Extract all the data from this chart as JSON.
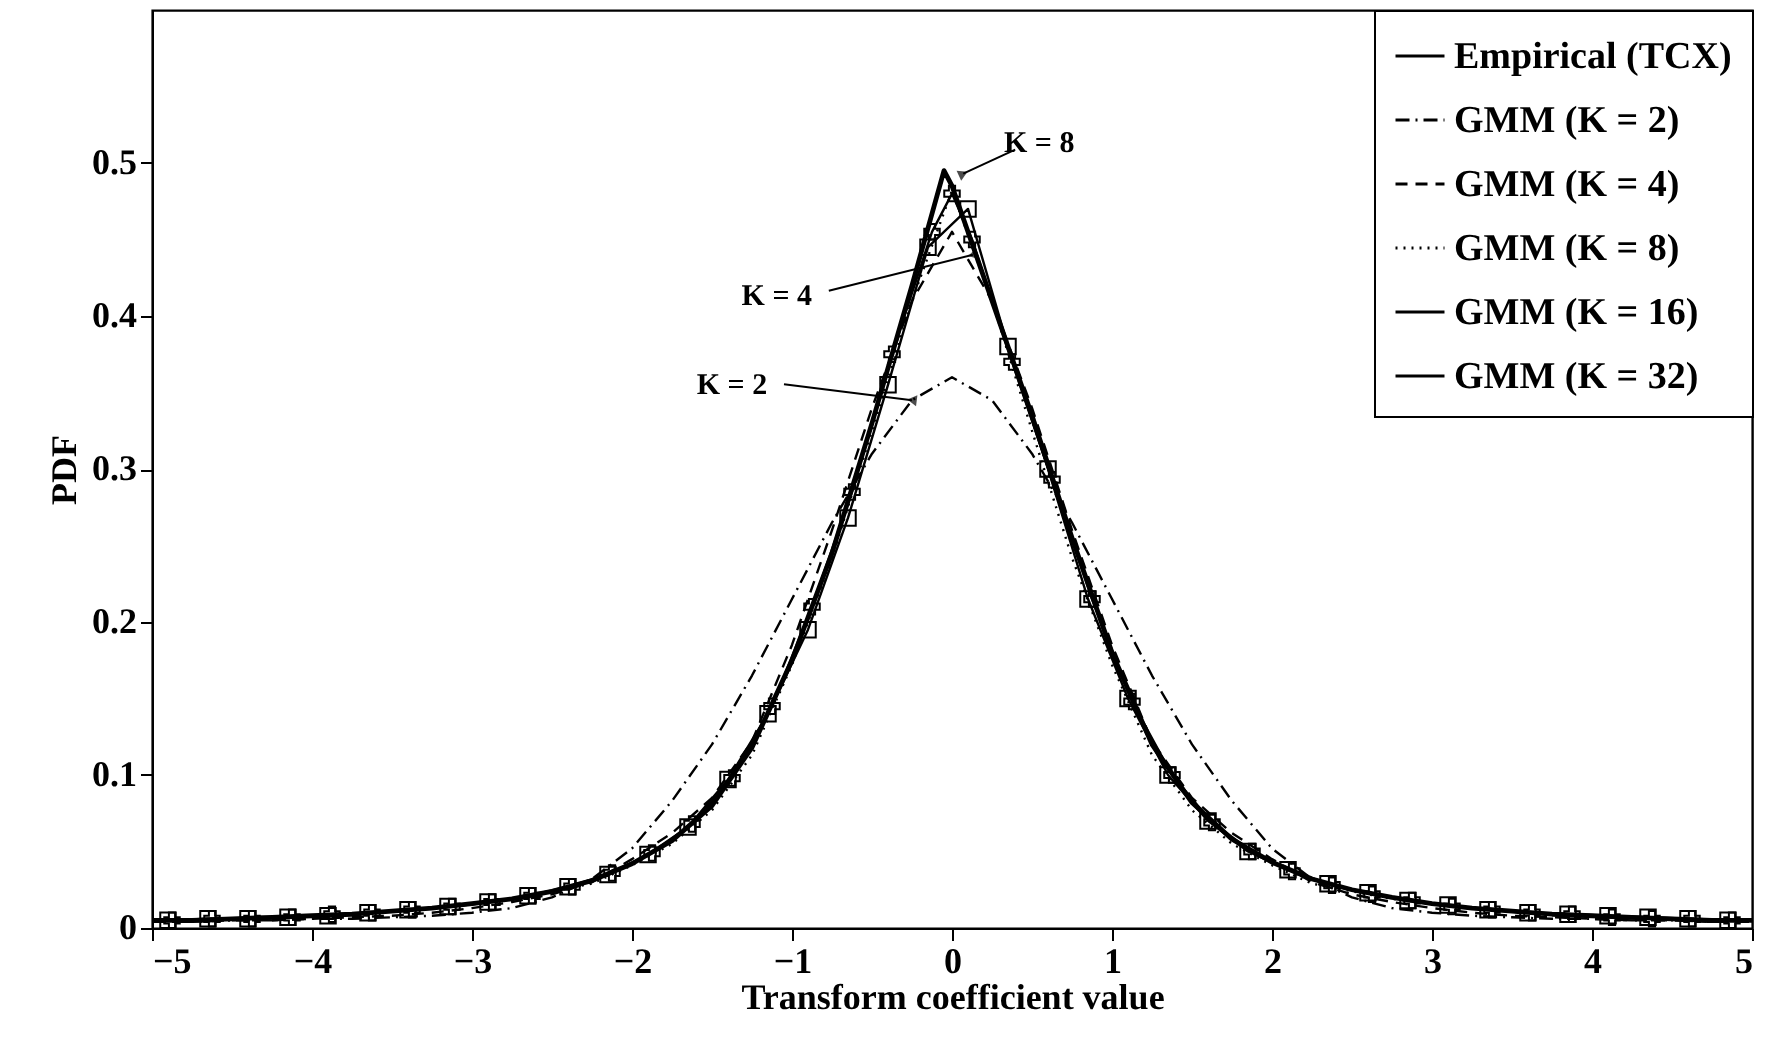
{
  "chart_data": {
    "type": "line",
    "xlabel": "Transform coefficient value",
    "ylabel": "PDF",
    "x": [
      -5,
      -4.75,
      -4.5,
      -4.25,
      -4,
      -3.75,
      -3.5,
      -3.25,
      -3,
      -2.75,
      -2.5,
      -2.25,
      -2,
      -1.75,
      -1.5,
      -1.25,
      -1,
      -0.75,
      -0.5,
      -0.25,
      0,
      0.25,
      0.5,
      0.75,
      1,
      1.25,
      1.5,
      1.75,
      2,
      2.25,
      2.5,
      2.75,
      3,
      3.25,
      3.5,
      3.75,
      4,
      4.25,
      4.5,
      4.75,
      5
    ],
    "series": [
      {
        "name": "Empirical (TCX)",
        "color": "#000000",
        "line_style": "solid",
        "marker": "none",
        "x": [
          -5,
          -4.75,
          -4.5,
          -4.25,
          -4,
          -3.75,
          -3.5,
          -3.25,
          -3,
          -2.75,
          -2.5,
          -2.25,
          -2,
          -1.75,
          -1.5,
          -1.25,
          -1,
          -0.75,
          -0.5,
          -0.25,
          -0.05,
          0,
          0.25,
          0.5,
          0.75,
          1,
          1.25,
          1.5,
          1.75,
          2,
          2.25,
          2.5,
          2.75,
          3,
          3.25,
          3.5,
          3.75,
          4,
          4.25,
          4.5,
          4.75,
          5
        ],
        "values": [
          0.005,
          0.005,
          0.006,
          0.007,
          0.008,
          0.009,
          0.011,
          0.013,
          0.016,
          0.019,
          0.024,
          0.031,
          0.042,
          0.057,
          0.08,
          0.118,
          0.175,
          0.245,
          0.33,
          0.42,
          0.495,
          0.485,
          0.41,
          0.335,
          0.255,
          0.18,
          0.12,
          0.082,
          0.058,
          0.043,
          0.032,
          0.025,
          0.02,
          0.016,
          0.013,
          0.011,
          0.009,
          0.008,
          0.007,
          0.006,
          0.005,
          0.005
        ]
      },
      {
        "name": "GMM (K = 2)",
        "color": "#000000",
        "line_style": "dashdot",
        "marker": "none",
        "values": [
          0.004,
          0.004,
          0.005,
          0.005,
          0.006,
          0.006,
          0.007,
          0.008,
          0.01,
          0.013,
          0.02,
          0.032,
          0.052,
          0.083,
          0.12,
          0.165,
          0.215,
          0.265,
          0.31,
          0.345,
          0.36,
          0.345,
          0.31,
          0.265,
          0.215,
          0.165,
          0.12,
          0.083,
          0.052,
          0.032,
          0.02,
          0.013,
          0.01,
          0.008,
          0.007,
          0.006,
          0.006,
          0.005,
          0.005,
          0.004,
          0.004
        ]
      },
      {
        "name": "GMM (K = 4)",
        "color": "#000000",
        "line_style": "dashed",
        "marker": "none",
        "values": [
          0.004,
          0.004,
          0.005,
          0.005,
          0.006,
          0.007,
          0.008,
          0.01,
          0.013,
          0.017,
          0.022,
          0.03,
          0.045,
          0.062,
          0.085,
          0.122,
          0.185,
          0.26,
          0.34,
          0.41,
          0.455,
          0.41,
          0.34,
          0.26,
          0.185,
          0.122,
          0.085,
          0.062,
          0.045,
          0.03,
          0.022,
          0.017,
          0.013,
          0.01,
          0.008,
          0.007,
          0.006,
          0.005,
          0.005,
          0.004,
          0.004
        ]
      },
      {
        "name": "GMM (K = 8)",
        "color": "#000000",
        "line_style": "dotted",
        "marker": "none",
        "values": [
          0.005,
          0.005,
          0.006,
          0.007,
          0.008,
          0.009,
          0.011,
          0.013,
          0.016,
          0.019,
          0.024,
          0.029,
          0.041,
          0.055,
          0.077,
          0.113,
          0.172,
          0.242,
          0.325,
          0.41,
          0.482,
          0.41,
          0.325,
          0.242,
          0.172,
          0.113,
          0.077,
          0.055,
          0.041,
          0.029,
          0.024,
          0.019,
          0.016,
          0.013,
          0.011,
          0.009,
          0.008,
          0.007,
          0.006,
          0.005,
          0.005
        ]
      },
      {
        "name": "GMM (K = 16)",
        "color": "#000000",
        "line_style": "solid",
        "marker": "cross",
        "x": [
          -4.875,
          -4.625,
          -4.375,
          -4.125,
          -3.875,
          -3.625,
          -3.375,
          -3.125,
          -2.875,
          -2.625,
          -2.375,
          -2.125,
          -1.875,
          -1.625,
          -1.375,
          -1.125,
          -0.875,
          -0.625,
          -0.375,
          -0.125,
          0,
          0.125,
          0.375,
          0.625,
          0.875,
          1.125,
          1.375,
          1.625,
          1.875,
          2.125,
          2.375,
          2.625,
          2.875,
          3.125,
          3.375,
          3.625,
          3.875,
          4.125,
          4.375,
          4.625,
          4.875
        ],
        "values": [
          0.005,
          0.006,
          0.006,
          0.007,
          0.009,
          0.01,
          0.012,
          0.014,
          0.017,
          0.021,
          0.027,
          0.036,
          0.049,
          0.068,
          0.098,
          0.145,
          0.21,
          0.285,
          0.375,
          0.455,
          0.48,
          0.45,
          0.37,
          0.293,
          0.215,
          0.148,
          0.1,
          0.069,
          0.05,
          0.037,
          0.028,
          0.022,
          0.018,
          0.014,
          0.012,
          0.01,
          0.009,
          0.007,
          0.006,
          0.006,
          0.005
        ]
      },
      {
        "name": "GMM (K = 32)",
        "color": "#000000",
        "line_style": "solid",
        "marker": "square",
        "x": [
          -4.9,
          -4.65,
          -4.4,
          -4.15,
          -3.9,
          -3.65,
          -3.4,
          -3.15,
          -2.9,
          -2.65,
          -2.4,
          -2.15,
          -1.9,
          -1.65,
          -1.4,
          -1.15,
          -0.9,
          -0.65,
          -0.4,
          -0.15,
          0.1,
          0.35,
          0.6,
          0.85,
          1.1,
          1.35,
          1.6,
          1.85,
          2.1,
          2.35,
          2.6,
          2.85,
          3.1,
          3.35,
          3.6,
          3.85,
          4.1,
          4.35,
          4.6,
          4.85
        ],
        "values": [
          0.005,
          0.006,
          0.006,
          0.007,
          0.008,
          0.01,
          0.012,
          0.014,
          0.017,
          0.021,
          0.027,
          0.035,
          0.048,
          0.066,
          0.097,
          0.14,
          0.195,
          0.268,
          0.355,
          0.445,
          0.47,
          0.38,
          0.3,
          0.215,
          0.15,
          0.1,
          0.07,
          0.05,
          0.038,
          0.029,
          0.023,
          0.018,
          0.015,
          0.012,
          0.01,
          0.009,
          0.008,
          0.007,
          0.006,
          0.005
        ]
      }
    ],
    "xlim": [
      -5,
      5
    ],
    "xticks": [
      -5,
      -4,
      -3,
      -2,
      -1,
      0,
      1,
      2,
      3,
      4,
      5
    ],
    "ylim": [
      0,
      0.6
    ],
    "yticks": [
      0,
      0.1,
      0.2,
      0.3,
      0.4,
      0.5
    ],
    "grid": false,
    "legend": "top right",
    "annotations": [
      {
        "text": "K = 8",
        "x": 0.07,
        "y": 0.493
      },
      {
        "text": "K = 4",
        "x": 0.13,
        "y": 0.44
      },
      {
        "text": "K = 2",
        "x": -0.25,
        "y": 0.345
      }
    ]
  }
}
